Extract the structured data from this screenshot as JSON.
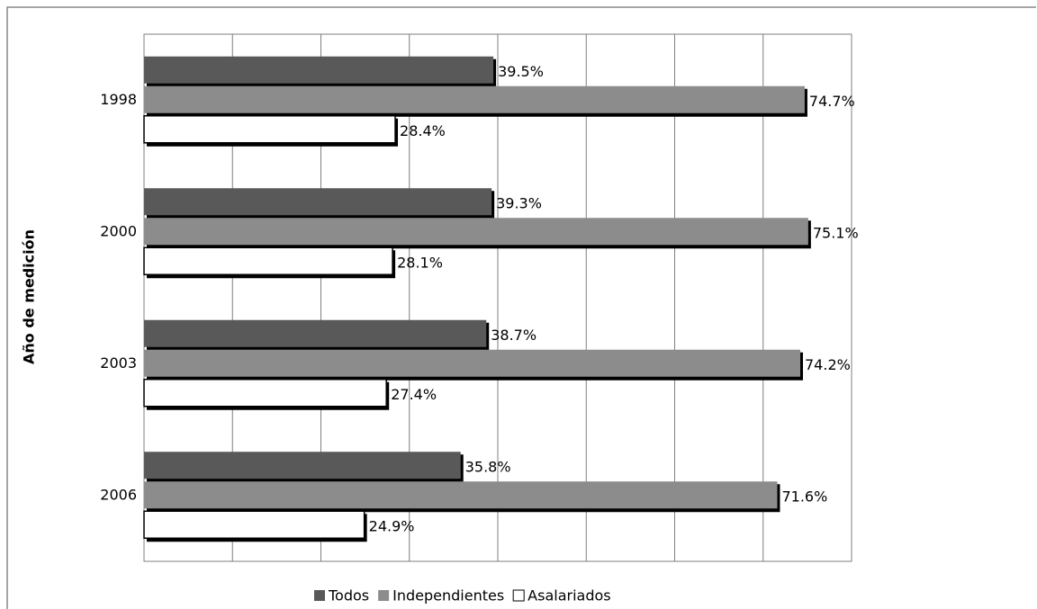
{
  "chart_data": {
    "type": "barh",
    "y_label": "Año de medición",
    "categories": [
      "1998",
      "2000",
      "2003",
      "2006"
    ],
    "series": [
      {
        "name": "Todos",
        "color": "#595959",
        "values": [
          39.5,
          39.3,
          38.7,
          35.8
        ],
        "value_labels": [
          "39.5%",
          "39.3%",
          "38.7%",
          "35.8%"
        ]
      },
      {
        "name": "Independientes",
        "color": "#8c8c8c",
        "values": [
          74.7,
          75.1,
          74.2,
          71.6
        ],
        "value_labels": [
          "74.7%",
          "75.1%",
          "74.2%",
          "71.6%"
        ]
      },
      {
        "name": "Asalariados",
        "color": "#ffffff",
        "values": [
          28.4,
          28.1,
          27.4,
          24.9
        ],
        "value_labels": [
          "28.4%",
          "28.1%",
          "27.4%",
          "24.9%"
        ]
      }
    ],
    "xlim": [
      0,
      80
    ],
    "xticks": [
      0,
      10,
      20,
      30,
      40,
      50,
      60,
      70,
      80
    ],
    "grid": true,
    "legend": "bottom"
  }
}
